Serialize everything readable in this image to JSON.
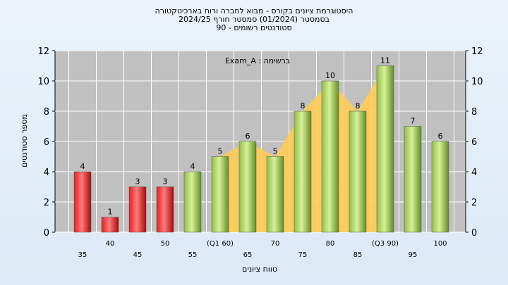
{
  "chart_data": {
    "type": "bar",
    "title_lines": [
      "היסטוגרמת ציונים בקורס - מבוא לחברה ורוח בארכיטקטורה",
      "בסמסטר  (01/2024)  סמסטר חורף 2024/25",
      "סטודנטים רשומים - 90"
    ],
    "annotation": "Exam_A : ברשימה",
    "xlabel": "טווח ציונים",
    "ylabel": "מספר סטודנטים",
    "ylim": [
      0,
      12
    ],
    "yticks": [
      "0",
      "2",
      "4",
      "6",
      "8",
      "10",
      "12"
    ],
    "grid": true,
    "categories": [
      "35",
      "40",
      "45",
      "50",
      "55",
      "(Q1 60)",
      "65",
      "70",
      "75",
      "80",
      "85",
      "(Q3 90)",
      "95",
      "100"
    ],
    "values": [
      4,
      1,
      3,
      3,
      4,
      5,
      6,
      5,
      8,
      10,
      8,
      11,
      7,
      6
    ],
    "bar_colors": [
      "red",
      "red",
      "red",
      "red",
      "green",
      "green",
      "green",
      "green",
      "green",
      "green",
      "green",
      "green",
      "green",
      "green"
    ],
    "area_series": [
      {
        "x": "(Q1 60)",
        "y": 5
      },
      {
        "x": "65",
        "y": 6
      },
      {
        "x": "70",
        "y": 5
      },
      {
        "x": "75",
        "y": 8
      },
      {
        "x": "80",
        "y": 10
      },
      {
        "x": "85",
        "y": 8
      },
      {
        "x": "(Q3 90)",
        "y": 11
      }
    ],
    "colors": {
      "red_light": "#ff7a7a",
      "red": "#e02020",
      "red_dark": "#a80a0a",
      "green_light": "#d9ef9a",
      "green": "#8fc044",
      "green_dark": "#5f8f24",
      "area": "#ffcc55",
      "plot_bg": "#c0c0c0",
      "grid": "#ffffff"
    }
  }
}
